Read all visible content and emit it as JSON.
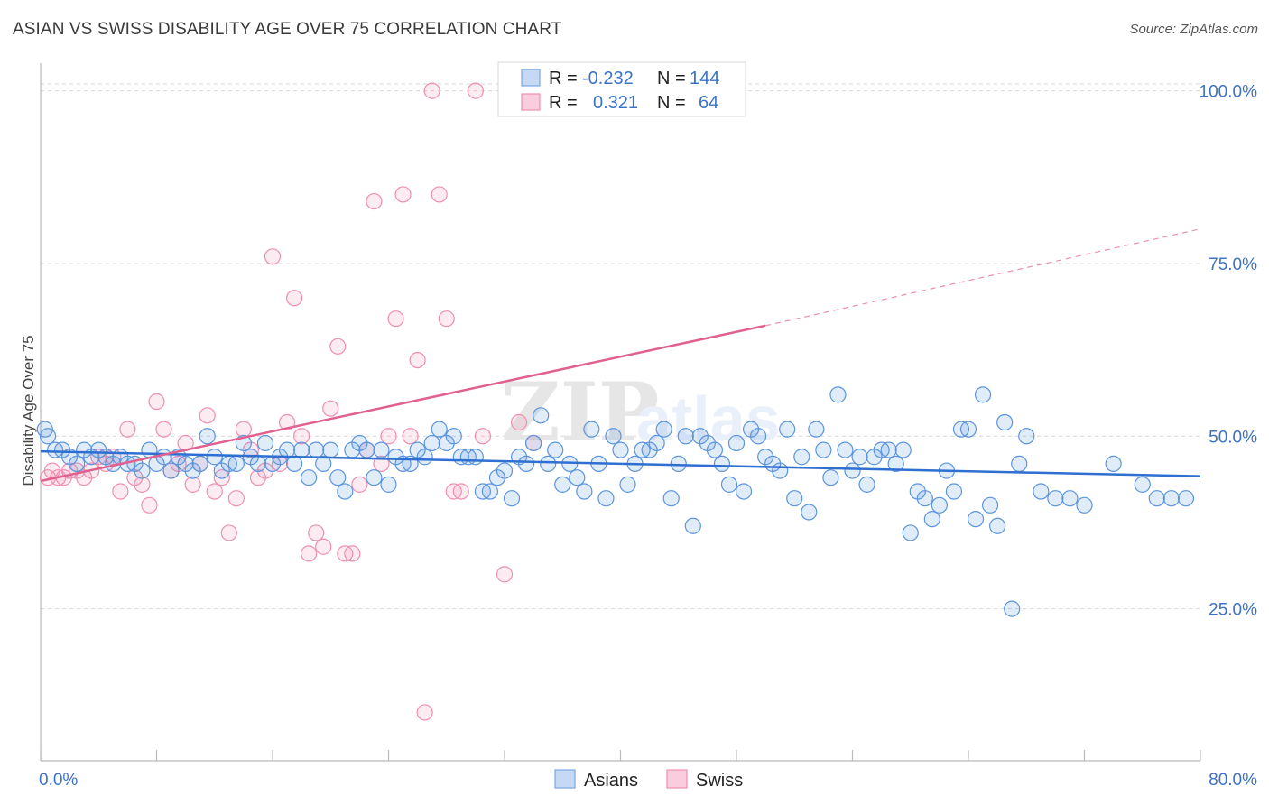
{
  "title": "ASIAN VS SWISS DISABILITY AGE OVER 75 CORRELATION CHART",
  "source": "Source: ZipAtlas.com",
  "colors": {
    "asians": "#5b95df",
    "swiss": "#ee8fb0",
    "asians_line": "#2e6fd1",
    "swiss_line": "#e0608f",
    "tick": "#3b73c8"
  },
  "legend_top": {
    "rows": [
      {
        "r_label": "R =",
        "r_value": "-0.232",
        "n_label": "N =",
        "n_value": "144"
      },
      {
        "r_label": "R =",
        "r_value": "0.321",
        "n_label": "N =",
        "n_value": "64"
      }
    ]
  },
  "legend_bottom": {
    "asians": "Asians",
    "swiss": "Swiss"
  },
  "watermark": "ZIPatlas",
  "chart_data": {
    "type": "scatter",
    "title": "ASIAN VS SWISS DISABILITY AGE OVER 75 CORRELATION CHART",
    "xlabel": "",
    "ylabel": "Disability Age Over 75",
    "xlim": [
      0,
      80
    ],
    "ylim": [
      3,
      104
    ],
    "x_tick_labels": [
      "0.0%",
      "80.0%"
    ],
    "y_ticks": [
      25,
      50,
      75,
      100
    ],
    "y_tick_labels": [
      "25.0%",
      "50.0%",
      "75.0%",
      "100.0%"
    ],
    "grid": "horizontal dashed",
    "legend_position": "top-center",
    "series": [
      {
        "name": "Asians",
        "r": -0.232,
        "n": 144,
        "trend": {
          "x": [
            0,
            80
          ],
          "y": [
            47.8,
            44.2
          ]
        },
        "points": [
          [
            0.3,
            51
          ],
          [
            0.5,
            50
          ],
          [
            1,
            48
          ],
          [
            1.5,
            48
          ],
          [
            2,
            47
          ],
          [
            2.5,
            46
          ],
          [
            3,
            48
          ],
          [
            3.5,
            47
          ],
          [
            4,
            48
          ],
          [
            4.5,
            47
          ],
          [
            5,
            46
          ],
          [
            5.5,
            47
          ],
          [
            6,
            46
          ],
          [
            6.5,
            46
          ],
          [
            7,
            45
          ],
          [
            7.5,
            48
          ],
          [
            8,
            46
          ],
          [
            8.5,
            47
          ],
          [
            9,
            45
          ],
          [
            9.5,
            47
          ],
          [
            10,
            46
          ],
          [
            10.5,
            45
          ],
          [
            11,
            46
          ],
          [
            11.5,
            50
          ],
          [
            12,
            47
          ],
          [
            12.5,
            45
          ],
          [
            13,
            46
          ],
          [
            13.5,
            46
          ],
          [
            14,
            49
          ],
          [
            14.5,
            47
          ],
          [
            15,
            46
          ],
          [
            15.5,
            49
          ],
          [
            16,
            46
          ],
          [
            16.5,
            47
          ],
          [
            17,
            48
          ],
          [
            17.5,
            46
          ],
          [
            18,
            48
          ],
          [
            18.5,
            44
          ],
          [
            19,
            48
          ],
          [
            19.5,
            46
          ],
          [
            20,
            48
          ],
          [
            20.5,
            44
          ],
          [
            21,
            42
          ],
          [
            21.5,
            48
          ],
          [
            22,
            49
          ],
          [
            22.5,
            48
          ],
          [
            23,
            44
          ],
          [
            23.5,
            48
          ],
          [
            24,
            43
          ],
          [
            24.5,
            47
          ],
          [
            25,
            46
          ],
          [
            25.5,
            46
          ],
          [
            26,
            48
          ],
          [
            26.5,
            47
          ],
          [
            27,
            49
          ],
          [
            27.5,
            51
          ],
          [
            28,
            49
          ],
          [
            28.5,
            50
          ],
          [
            29,
            47
          ],
          [
            29.5,
            47
          ],
          [
            30,
            47
          ],
          [
            30.5,
            42
          ],
          [
            31,
            42
          ],
          [
            31.5,
            44
          ],
          [
            32,
            45
          ],
          [
            32.5,
            41
          ],
          [
            33,
            47
          ],
          [
            33.5,
            46
          ],
          [
            34,
            49
          ],
          [
            34.5,
            53
          ],
          [
            35,
            46
          ],
          [
            35.5,
            48
          ],
          [
            36,
            43
          ],
          [
            36.5,
            46
          ],
          [
            37,
            44
          ],
          [
            37.5,
            42
          ],
          [
            38,
            51
          ],
          [
            38.5,
            46
          ],
          [
            39,
            41
          ],
          [
            39.5,
            50
          ],
          [
            40,
            48
          ],
          [
            40.5,
            43
          ],
          [
            41,
            46
          ],
          [
            41.5,
            48
          ],
          [
            42,
            48
          ],
          [
            42.5,
            49
          ],
          [
            43,
            51
          ],
          [
            43.5,
            41
          ],
          [
            44,
            46
          ],
          [
            44.5,
            50
          ],
          [
            45,
            37
          ],
          [
            45.5,
            50
          ],
          [
            46,
            49
          ],
          [
            46.5,
            48
          ],
          [
            47,
            46
          ],
          [
            47.5,
            43
          ],
          [
            48,
            49
          ],
          [
            48.5,
            42
          ],
          [
            49,
            51
          ],
          [
            49.5,
            50
          ],
          [
            50,
            47
          ],
          [
            50.5,
            46
          ],
          [
            51,
            45
          ],
          [
            51.5,
            51
          ],
          [
            52,
            41
          ],
          [
            52.5,
            47
          ],
          [
            53,
            39
          ],
          [
            53.5,
            51
          ],
          [
            54,
            48
          ],
          [
            54.5,
            44
          ],
          [
            55,
            56
          ],
          [
            55.5,
            48
          ],
          [
            56,
            45
          ],
          [
            56.5,
            47
          ],
          [
            57,
            43
          ],
          [
            57.5,
            47
          ],
          [
            58,
            48
          ],
          [
            58.5,
            48
          ],
          [
            59,
            46
          ],
          [
            59.5,
            48
          ],
          [
            60,
            36
          ],
          [
            60.5,
            42
          ],
          [
            61,
            41
          ],
          [
            61.5,
            38
          ],
          [
            62,
            40
          ],
          [
            62.5,
            45
          ],
          [
            63,
            42
          ],
          [
            63.5,
            51
          ],
          [
            64,
            51
          ],
          [
            64.5,
            38
          ],
          [
            65,
            56
          ],
          [
            65.5,
            40
          ],
          [
            66,
            37
          ],
          [
            66.5,
            52
          ],
          [
            67,
            25
          ],
          [
            67.5,
            46
          ],
          [
            68,
            50
          ],
          [
            69,
            42
          ],
          [
            70,
            41
          ],
          [
            71,
            41
          ],
          [
            72,
            40
          ],
          [
            74,
            46
          ],
          [
            76,
            43
          ],
          [
            77,
            41
          ],
          [
            78,
            41
          ],
          [
            79,
            41
          ]
        ]
      },
      {
        "name": "Swiss",
        "r": 0.321,
        "n": 64,
        "trend": {
          "x": [
            0,
            50
          ],
          "y": [
            43.5,
            66
          ]
        },
        "trend_extension": {
          "x": [
            50,
            80
          ],
          "y": [
            66,
            80
          ]
        },
        "points": [
          [
            0.5,
            44
          ],
          [
            0.8,
            45
          ],
          [
            1.2,
            44
          ],
          [
            1.6,
            44
          ],
          [
            2,
            45
          ],
          [
            2.5,
            45
          ],
          [
            3,
            44
          ],
          [
            3.5,
            45
          ],
          [
            4,
            47
          ],
          [
            4.5,
            46
          ],
          [
            5,
            47
          ],
          [
            5.5,
            42
          ],
          [
            6,
            51
          ],
          [
            6.5,
            44
          ],
          [
            7,
            43
          ],
          [
            7.5,
            40
          ],
          [
            8,
            55
          ],
          [
            8.5,
            51
          ],
          [
            9,
            45
          ],
          [
            9.5,
            46
          ],
          [
            10,
            49
          ],
          [
            10.5,
            43
          ],
          [
            11,
            46
          ],
          [
            11.5,
            53
          ],
          [
            12,
            42
          ],
          [
            12.5,
            44
          ],
          [
            13,
            36
          ],
          [
            13.5,
            41
          ],
          [
            14,
            51
          ],
          [
            14.5,
            48
          ],
          [
            15,
            44
          ],
          [
            15.5,
            45
          ],
          [
            16,
            76
          ],
          [
            16.5,
            46
          ],
          [
            17,
            52
          ],
          [
            17.5,
            70
          ],
          [
            18,
            50
          ],
          [
            18.5,
            33
          ],
          [
            19,
            36
          ],
          [
            19.5,
            34
          ],
          [
            20,
            54
          ],
          [
            20.5,
            63
          ],
          [
            21,
            33
          ],
          [
            21.5,
            33
          ],
          [
            22,
            43
          ],
          [
            22.5,
            48
          ],
          [
            23,
            84
          ],
          [
            23.5,
            46
          ],
          [
            24,
            50
          ],
          [
            24.5,
            67
          ],
          [
            25,
            85
          ],
          [
            25.5,
            50
          ],
          [
            26,
            61
          ],
          [
            26.5,
            10
          ],
          [
            27,
            100
          ],
          [
            27.5,
            85
          ],
          [
            28,
            67
          ],
          [
            28.5,
            42
          ],
          [
            29,
            42
          ],
          [
            30,
            100
          ],
          [
            30.5,
            50
          ],
          [
            32,
            30
          ],
          [
            33,
            52
          ],
          [
            34,
            49
          ]
        ]
      }
    ]
  }
}
